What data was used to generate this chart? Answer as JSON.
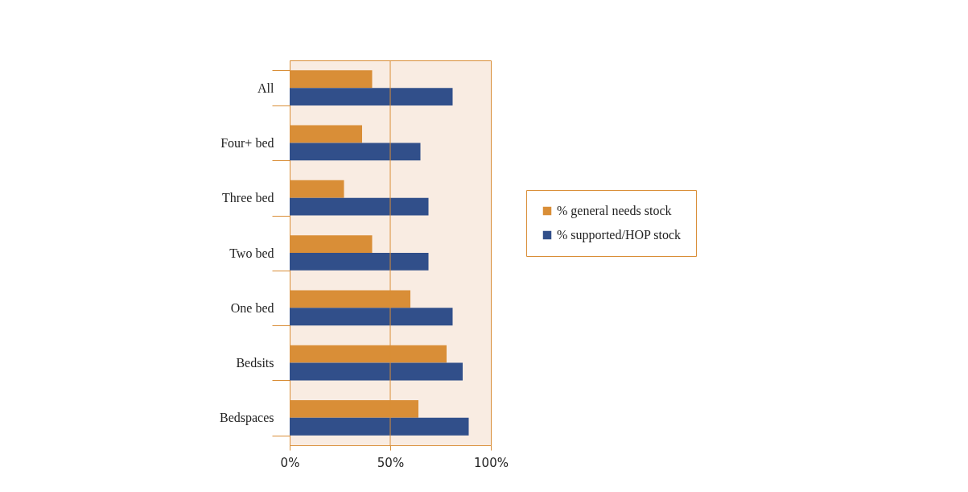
{
  "chart_data": {
    "type": "bar",
    "orientation": "horizontal",
    "categories": [
      "All",
      "Four+ bed",
      "Three bed",
      "Two bed",
      "One bed",
      "Bedsits",
      "Bedspaces"
    ],
    "series": [
      {
        "name": "% general needs stock",
        "color": "#d98e37",
        "values": [
          41,
          36,
          27,
          41,
          60,
          78,
          64
        ]
      },
      {
        "name": "% supported/HOP stock",
        "color": "#314f8a",
        "values": [
          81,
          65,
          69,
          69,
          81,
          86,
          89
        ]
      }
    ],
    "xlim": [
      0,
      100
    ],
    "xticks": [
      {
        "value": 0,
        "label": "0%"
      },
      {
        "value": 50,
        "label": "50%"
      },
      {
        "value": 100,
        "label": "100%"
      }
    ],
    "ref_lines": [
      {
        "axis": "x",
        "value": 50,
        "color": "#d98e37"
      }
    ],
    "legend": "right"
  }
}
